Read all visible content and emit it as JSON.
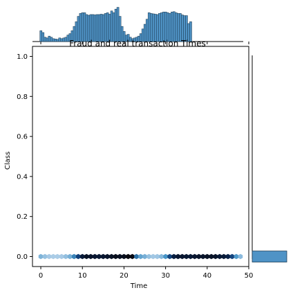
{
  "chart_data": {
    "type": "hexbin_joint",
    "title": "Fraud and real transaction Times",
    "xlabel": "Time",
    "ylabel": "Class",
    "xlim": [
      -2,
      50
    ],
    "ylim": [
      -0.05,
      1.05
    ],
    "xticks": [
      0,
      10,
      20,
      30,
      40,
      50
    ],
    "yticks": [
      0.0,
      0.2,
      0.4,
      0.6,
      0.8,
      1.0
    ],
    "hexbin": {
      "y": 0.0,
      "x": [
        0,
        1,
        2,
        3,
        4,
        5,
        6,
        7,
        8,
        9,
        10,
        11,
        12,
        13,
        14,
        15,
        16,
        17,
        18,
        19,
        20,
        21,
        22,
        23,
        24,
        25,
        26,
        27,
        28,
        29,
        30,
        31,
        32,
        33,
        34,
        35,
        36,
        37,
        38,
        39,
        40,
        41,
        42,
        43,
        44,
        45,
        46,
        47,
        48
      ],
      "density": [
        0.18,
        0.12,
        0.08,
        0.07,
        0.07,
        0.08,
        0.13,
        0.2,
        0.38,
        0.62,
        0.85,
        0.92,
        0.9,
        0.88,
        0.87,
        0.88,
        0.9,
        0.92,
        0.95,
        0.93,
        0.95,
        1.0,
        0.99,
        0.45,
        0.25,
        0.2,
        0.12,
        0.09,
        0.1,
        0.16,
        0.32,
        0.6,
        0.82,
        0.88,
        0.88,
        0.87,
        0.86,
        0.88,
        0.9,
        0.9,
        0.92,
        0.91,
        0.9,
        0.86,
        0.85,
        0.8,
        0.6,
        0.3,
        0.15
      ]
    },
    "marginal_x": {
      "bin_start": 0,
      "bin_width": 0.5,
      "relative_heights": [
        0.3,
        0.25,
        0.12,
        0.1,
        0.15,
        0.12,
        0.08,
        0.07,
        0.06,
        0.1,
        0.08,
        0.1,
        0.12,
        0.18,
        0.22,
        0.3,
        0.42,
        0.55,
        0.7,
        0.78,
        0.8,
        0.8,
        0.75,
        0.73,
        0.75,
        0.75,
        0.74,
        0.75,
        0.75,
        0.76,
        0.75,
        0.78,
        0.8,
        0.76,
        0.85,
        0.8,
        0.9,
        0.95,
        0.7,
        0.42,
        0.28,
        0.18,
        0.2,
        0.12,
        0.08,
        0.1,
        0.12,
        0.15,
        0.22,
        0.35,
        0.48,
        0.62,
        0.8,
        0.78,
        0.77,
        0.76,
        0.75,
        0.78,
        0.8,
        0.82,
        0.82,
        0.8,
        0.78,
        0.82,
        0.83,
        0.8,
        0.78,
        0.78,
        0.74,
        0.72,
        0.72,
        0.5,
        0.55
      ]
    },
    "marginal_y": {
      "bars": [
        {
          "class": 0.0,
          "relative_width": 1.0
        }
      ]
    },
    "colors": {
      "hist_fill": "#4f93c6",
      "hist_edge": "#1f3f58",
      "hex_low": "#c6dbef",
      "hex_high": "#08080f"
    }
  }
}
